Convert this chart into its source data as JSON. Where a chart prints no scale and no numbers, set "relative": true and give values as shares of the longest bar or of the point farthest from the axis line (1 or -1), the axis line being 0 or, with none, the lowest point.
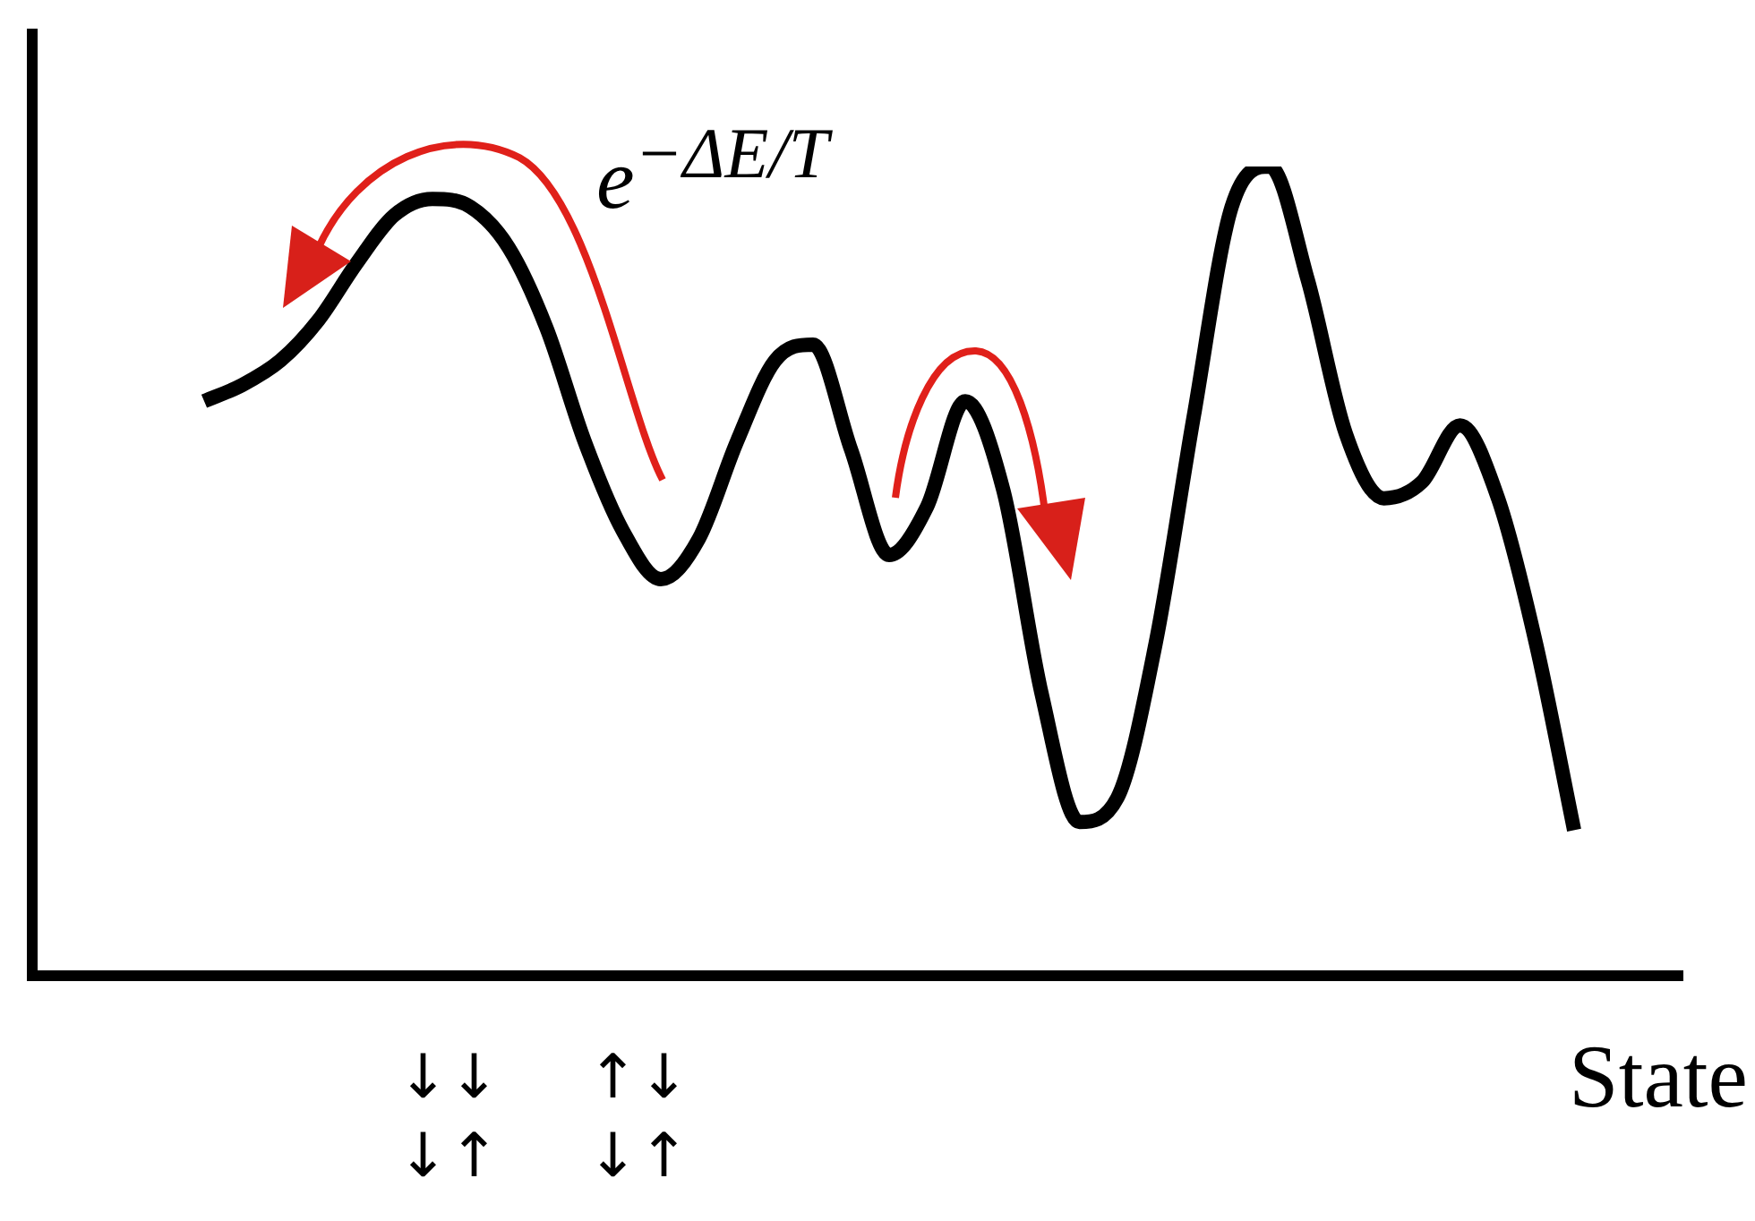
{
  "chart_data": {
    "type": "line",
    "relative": true,
    "xlabel": "State",
    "marker": "none",
    "tick_labels": false,
    "color": "#000000",
    "categories": [
      null,
      null,
      null,
      null,
      null,
      null,
      null,
      null,
      null,
      null,
      null,
      null,
      null,
      null,
      null,
      null,
      null,
      null,
      null,
      null,
      null,
      null,
      null,
      null,
      null,
      null,
      null,
      null,
      null,
      null,
      null,
      null,
      null,
      null,
      null,
      null,
      null
    ],
    "values": [
      0.71,
      0.73,
      0.76,
      0.81,
      0.88,
      0.94,
      0.96,
      0.95,
      0.9,
      0.8,
      0.66,
      0.55,
      0.49,
      0.54,
      0.66,
      0.76,
      0.78,
      0.65,
      0.52,
      0.58,
      0.71,
      0.6,
      0.35,
      0.19,
      0.22,
      0.41,
      0.69,
      0.95,
      1.0,
      0.86,
      0.67,
      0.59,
      0.61,
      0.68,
      0.59,
      0.41,
      0.18
    ],
    "annotations": [
      "e$^{−ΔE/T}$",
      "↓↓\n↓↑",
      "↑↓\n↓↑"
    ]
  }
}
